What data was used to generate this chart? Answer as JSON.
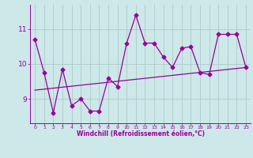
{
  "x": [
    0,
    1,
    2,
    3,
    4,
    5,
    6,
    7,
    8,
    9,
    10,
    11,
    12,
    13,
    14,
    15,
    16,
    17,
    18,
    19,
    20,
    21,
    22,
    23
  ],
  "y": [
    10.7,
    9.75,
    8.6,
    9.85,
    8.8,
    9.0,
    8.65,
    8.65,
    9.6,
    9.35,
    10.6,
    11.4,
    10.6,
    10.6,
    10.2,
    9.9,
    10.45,
    10.5,
    9.75,
    9.7,
    10.85,
    10.85,
    10.85,
    9.9
  ],
  "trend_x": [
    0,
    23
  ],
  "trend_y": [
    9.25,
    9.9
  ],
  "xlim": [
    -0.5,
    23.5
  ],
  "ylim": [
    8.3,
    11.7
  ],
  "yticks": [
    9,
    10,
    11
  ],
  "xticks": [
    0,
    1,
    2,
    3,
    4,
    5,
    6,
    7,
    8,
    9,
    10,
    11,
    12,
    13,
    14,
    15,
    16,
    17,
    18,
    19,
    20,
    21,
    22,
    23
  ],
  "line_color": "#990099",
  "bg_color": "#cce8e8",
  "grid_color": "#b0c8c8",
  "xlabel": "Windchill (Refroidissement éolien,°C)",
  "marker": "D",
  "markersize": 2.5
}
